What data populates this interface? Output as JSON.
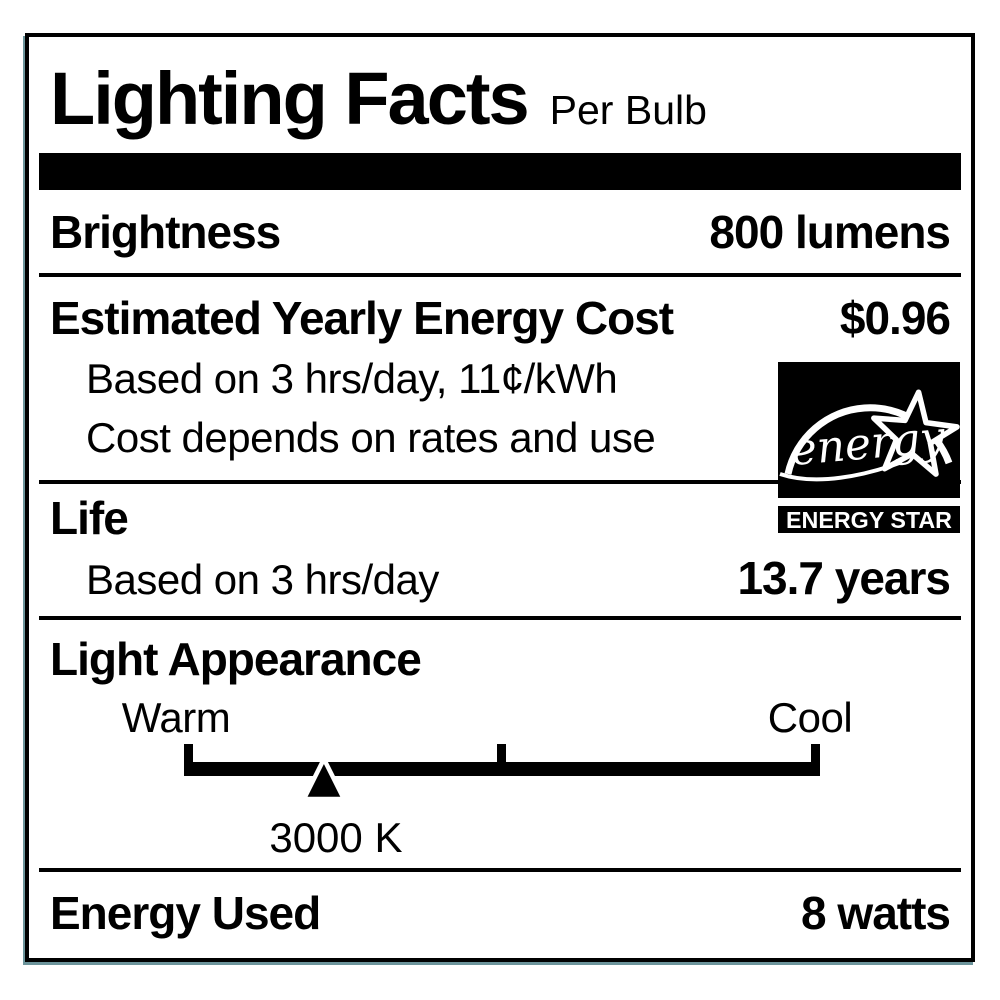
{
  "label": {
    "title": "Lighting Facts",
    "subtitle": "Per Bulb",
    "brightness": {
      "name": "Brightness",
      "value": "800 lumens"
    },
    "energy_cost": {
      "name": "Estimated Yearly Energy Cost",
      "value": "$0.96",
      "note_basis": "Based on 3 hrs/day, 11¢/kWh",
      "note_disclaimer": "Cost depends on rates and use"
    },
    "life": {
      "name": "Life",
      "note_basis": "Based on 3 hrs/day",
      "value": "13.7 years"
    },
    "light_appearance": {
      "name": "Light Appearance",
      "warm": "Warm",
      "cool": "Cool",
      "marker_value": "3000 K",
      "marker_position_pct": 22
    },
    "energy_used": {
      "name": "Energy Used",
      "value": "8 watts"
    },
    "energy_star": {
      "script": "energy",
      "band": "ENERGY STAR"
    },
    "colors": {
      "ink": "#000000",
      "paper": "#ffffff",
      "border_edge_tint": "#1d5a66"
    }
  }
}
